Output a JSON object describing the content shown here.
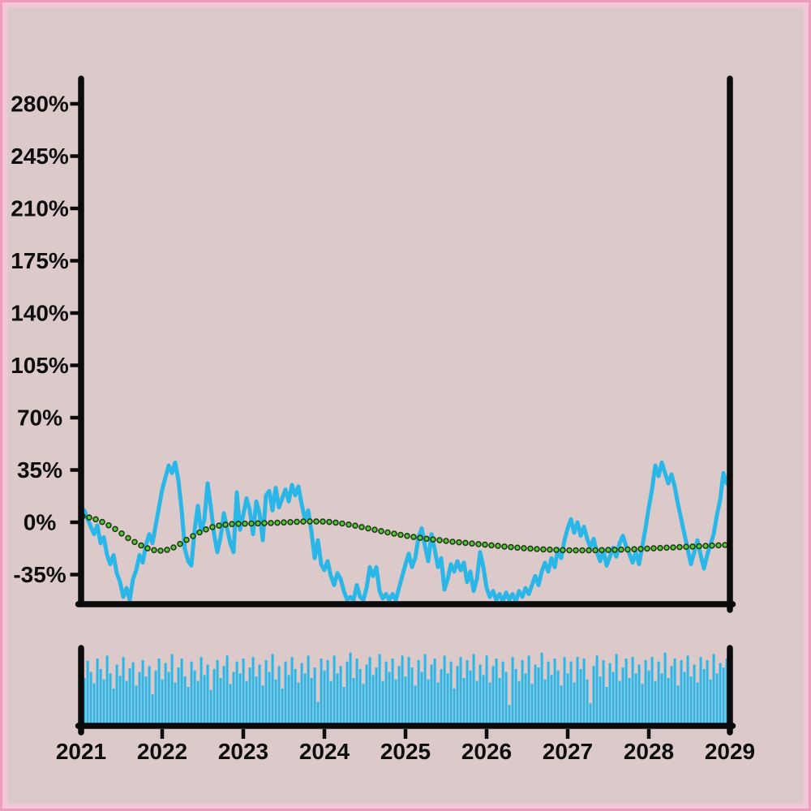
{
  "colors": {
    "page_background": "#dccaca",
    "frame_outer": "#ee9cbd",
    "frame_inner": "#f3c7d7",
    "axis": "#0b0b0b",
    "label": "#0d0d0d",
    "price_line": "#2ab7e8",
    "volume_bar": "#2ab7e8",
    "ma_dot_fill": "#55c93a",
    "ma_dot_edge": "#1e3d12"
  },
  "chart_data": {
    "type": "line",
    "title": "",
    "xlabel": "",
    "ylabel": "",
    "grid": false,
    "legend_position": "none",
    "x_axis": {
      "tick_labels": [
        "2021",
        "2022",
        "2023",
        "2024",
        "2025",
        "2026",
        "2027",
        "2028",
        "2029"
      ],
      "tick_values": [
        2021,
        2022,
        2023,
        2024,
        2025,
        2026,
        2027,
        2028,
        2029
      ],
      "range": [
        2021,
        2029
      ]
    },
    "main_panel": {
      "y_axis": {
        "tick_labels": [
          "280%",
          "245%",
          "210%",
          "175%",
          "140%",
          "105%",
          "70%",
          "35%",
          "0%",
          "-35%"
        ],
        "tick_values": [
          280,
          245,
          210,
          175,
          140,
          105,
          70,
          35,
          0,
          -35
        ],
        "range_pct": [
          -54,
          297
        ]
      },
      "series": [
        {
          "name": "price-return",
          "type": "line",
          "unit": "%",
          "x_start": 2021.0,
          "x_step": 0.04,
          "values": [
            3,
            8,
            2,
            -3,
            -8,
            -2,
            -14,
            -10,
            -22,
            -28,
            -22,
            -34,
            -40,
            -50,
            -44,
            -52,
            -38,
            -32,
            -22,
            -27,
            -15,
            -8,
            -14,
            -2,
            10,
            22,
            30,
            38,
            33,
            40,
            28,
            8,
            -18,
            -26,
            -29,
            -5,
            11,
            -6,
            2,
            26,
            10,
            -8,
            -20,
            -10,
            6,
            -4,
            -14,
            -20,
            20,
            -5,
            5,
            16,
            8,
            -8,
            14,
            6,
            -12,
            18,
            21,
            8,
            23,
            10,
            16,
            22,
            14,
            25,
            18,
            24,
            12,
            2,
            8,
            -6,
            -24,
            -12,
            -28,
            -32,
            -26,
            -36,
            -42,
            -34,
            -38,
            -46,
            -52,
            -50,
            -52,
            -42,
            -50,
            -52,
            -44,
            -30,
            -36,
            -30,
            -46,
            -51,
            -48,
            -52,
            -48,
            -52,
            -44,
            -36,
            -28,
            -21,
            -30,
            -24,
            -10,
            -4,
            -16,
            -26,
            -8,
            -18,
            -30,
            -24,
            -45,
            -38,
            -28,
            -33,
            -26,
            -32,
            -27,
            -40,
            -33,
            -46,
            -38,
            -20,
            -30,
            -44,
            -50,
            -46,
            -52,
            -48,
            -53,
            -47,
            -52,
            -48,
            -53,
            -46,
            -50,
            -44,
            -48,
            -42,
            -36,
            -42,
            -33,
            -27,
            -33,
            -24,
            -30,
            -18,
            -24,
            -12,
            -4,
            2,
            -7,
            0,
            -9,
            -3,
            -11,
            -17,
            -11,
            -20,
            -26,
            -19,
            -29,
            -23,
            -17,
            -23,
            -14,
            -9,
            -16,
            -21,
            -27,
            -20,
            -28,
            -16,
            -4,
            10,
            22,
            38,
            31,
            40,
            33,
            26,
            32,
            24,
            12,
            2,
            -8,
            -18,
            -28,
            -20,
            -12,
            -22,
            -31,
            -22,
            -15,
            -8,
            5,
            15,
            33,
            26
          ]
        },
        {
          "name": "moving-average",
          "type": "dotted-line",
          "unit": "%",
          "x_start": 2021.02,
          "x_step": 0.08,
          "values": [
            4.0,
            3.2,
            2.0,
            0.2,
            -2.0,
            -4.5,
            -7.5,
            -10.5,
            -13.2,
            -15.5,
            -17.4,
            -18.6,
            -19.0,
            -18.4,
            -16.8,
            -14.5,
            -11.8,
            -9.2,
            -6.8,
            -4.8,
            -3.2,
            -2.2,
            -1.6,
            -1.2,
            -1.0,
            -0.9,
            -0.8,
            -0.7,
            -0.6,
            -0.5,
            -0.3,
            -0.1,
            0.1,
            0.3,
            0.5,
            0.6,
            0.6,
            0.5,
            0.2,
            -0.2,
            -0.8,
            -1.5,
            -2.3,
            -3.2,
            -4.1,
            -5.0,
            -5.9,
            -6.8,
            -7.6,
            -8.4,
            -9.1,
            -9.8,
            -10.4,
            -11.0,
            -11.5,
            -12.0,
            -12.5,
            -13.0,
            -13.4,
            -13.8,
            -14.2,
            -14.6,
            -15.0,
            -15.4,
            -15.8,
            -16.2,
            -16.6,
            -17.0,
            -17.3,
            -17.6,
            -17.9,
            -18.1,
            -18.3,
            -18.5,
            -18.6,
            -18.7,
            -18.8,
            -18.8,
            -18.8,
            -18.7,
            -18.6,
            -18.5,
            -18.4,
            -18.3,
            -18.2,
            -18.0,
            -17.8,
            -17.6,
            -17.4,
            -17.2,
            -17.0,
            -16.8,
            -16.6,
            -16.4,
            -16.2,
            -16.0,
            -15.8,
            -15.6,
            -15.4,
            -15.2
          ]
        }
      ]
    },
    "volume_panel": {
      "y_axis": {
        "tick_labels": [],
        "range": [
          0,
          100
        ]
      },
      "series": [
        {
          "name": "volume",
          "type": "bar",
          "x_start": 2021.0,
          "x_step": 0.04,
          "values": [
            78,
            62,
            85,
            70,
            55,
            88,
            74,
            60,
            92,
            68,
            48,
            80,
            65,
            90,
            58,
            75,
            83,
            52,
            70,
            86,
            64,
            78,
            40,
            72,
            88,
            60,
            82,
            70,
            94,
            56,
            76,
            88,
            64,
            50,
            84,
            72,
            58,
            90,
            66,
            80,
            46,
            74,
            86,
            62,
            78,
            92,
            54,
            70,
            84,
            68,
            88,
            58,
            76,
            90,
            64,
            80,
            52,
            86,
            70,
            94,
            60,
            78,
            48,
            84,
            66,
            90,
            74,
            56,
            82,
            68,
            92,
            62,
            76,
            30,
            88,
            72,
            86,
            58,
            92,
            68,
            78,
            50,
            84,
            96,
            62,
            88,
            74,
            54,
            80,
            90,
            66,
            76,
            94,
            58,
            84,
            70,
            88,
            60,
            78,
            92,
            64,
            90,
            76,
            52,
            86,
            70,
            94,
            60,
            80,
            88,
            56,
            74,
            92,
            68,
            84,
            48,
            78,
            90,
            62,
            86,
            72,
            94,
            58,
            80,
            66,
            92,
            56,
            78,
            88,
            62,
            84,
            70,
            26,
            90,
            74,
            58,
            86,
            68,
            92,
            54,
            80,
            76,
            96,
            60,
            84,
            66,
            88,
            72,
            52,
            90,
            68,
            84,
            56,
            90,
            74,
            88,
            60,
            28,
            78,
            92,
            64,
            86,
            50,
            82,
            70,
            94,
            58,
            76,
            88,
            62,
            90,
            68,
            80,
            54,
            86,
            72,
            90,
            58,
            84,
            68,
            96,
            62,
            78,
            88,
            52,
            86,
            70,
            92,
            64,
            80,
            56,
            90,
            74,
            86,
            60,
            94,
            68,
            82,
            76,
            88
          ]
        }
      ]
    }
  }
}
